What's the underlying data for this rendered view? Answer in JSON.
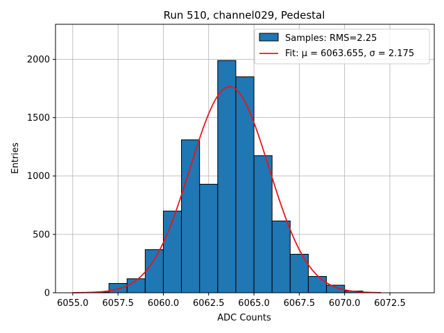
{
  "chart_data": {
    "type": "bar",
    "title": "Run 510, channel029, Pedestal",
    "xlabel": "ADC Counts",
    "ylabel": "Entries",
    "xlim": [
      6054.05,
      6074.95
    ],
    "ylim": [
      0,
      2300
    ],
    "xticks": [
      6055.0,
      6057.5,
      6060.0,
      6062.5,
      6065.0,
      6067.5,
      6070.0,
      6072.5
    ],
    "xtick_labels": [
      "6055.0",
      "6057.5",
      "6060.0",
      "6062.5",
      "6065.0",
      "6067.5",
      "6070.0",
      "6072.5"
    ],
    "yticks": [
      0,
      500,
      1000,
      1500,
      2000
    ],
    "ytick_labels": [
      "0",
      "500",
      "1000",
      "1500",
      "2000"
    ],
    "grid": true,
    "legend_position": "top-right",
    "colors": {
      "bars": "#1f77b4",
      "bar_edge": "#000000",
      "fit": "#e8141e",
      "grid": "#b0b0b0"
    },
    "histogram": {
      "name": "Samples: RMS=2.25",
      "bin_edges": [
        6055.0,
        6056.0,
        6057.0,
        6058.0,
        6059.0,
        6060.0,
        6061.0,
        6062.0,
        6063.0,
        6064.0,
        6065.0,
        6066.0,
        6067.0,
        6068.0,
        6069.0,
        6070.0,
        6071.0,
        6072.0,
        6073.0,
        6074.0
      ],
      "counts": [
        0,
        5,
        80,
        120,
        370,
        700,
        1310,
        930,
        1990,
        1850,
        1175,
        615,
        330,
        140,
        65,
        15,
        0,
        0,
        0
      ]
    },
    "fit": {
      "name": "Fit: μ = 6063.655, σ = 2.175",
      "mu": 6063.655,
      "sigma": 2.175,
      "peak": 1765,
      "x_range": [
        6055.0,
        6072.0
      ]
    }
  }
}
